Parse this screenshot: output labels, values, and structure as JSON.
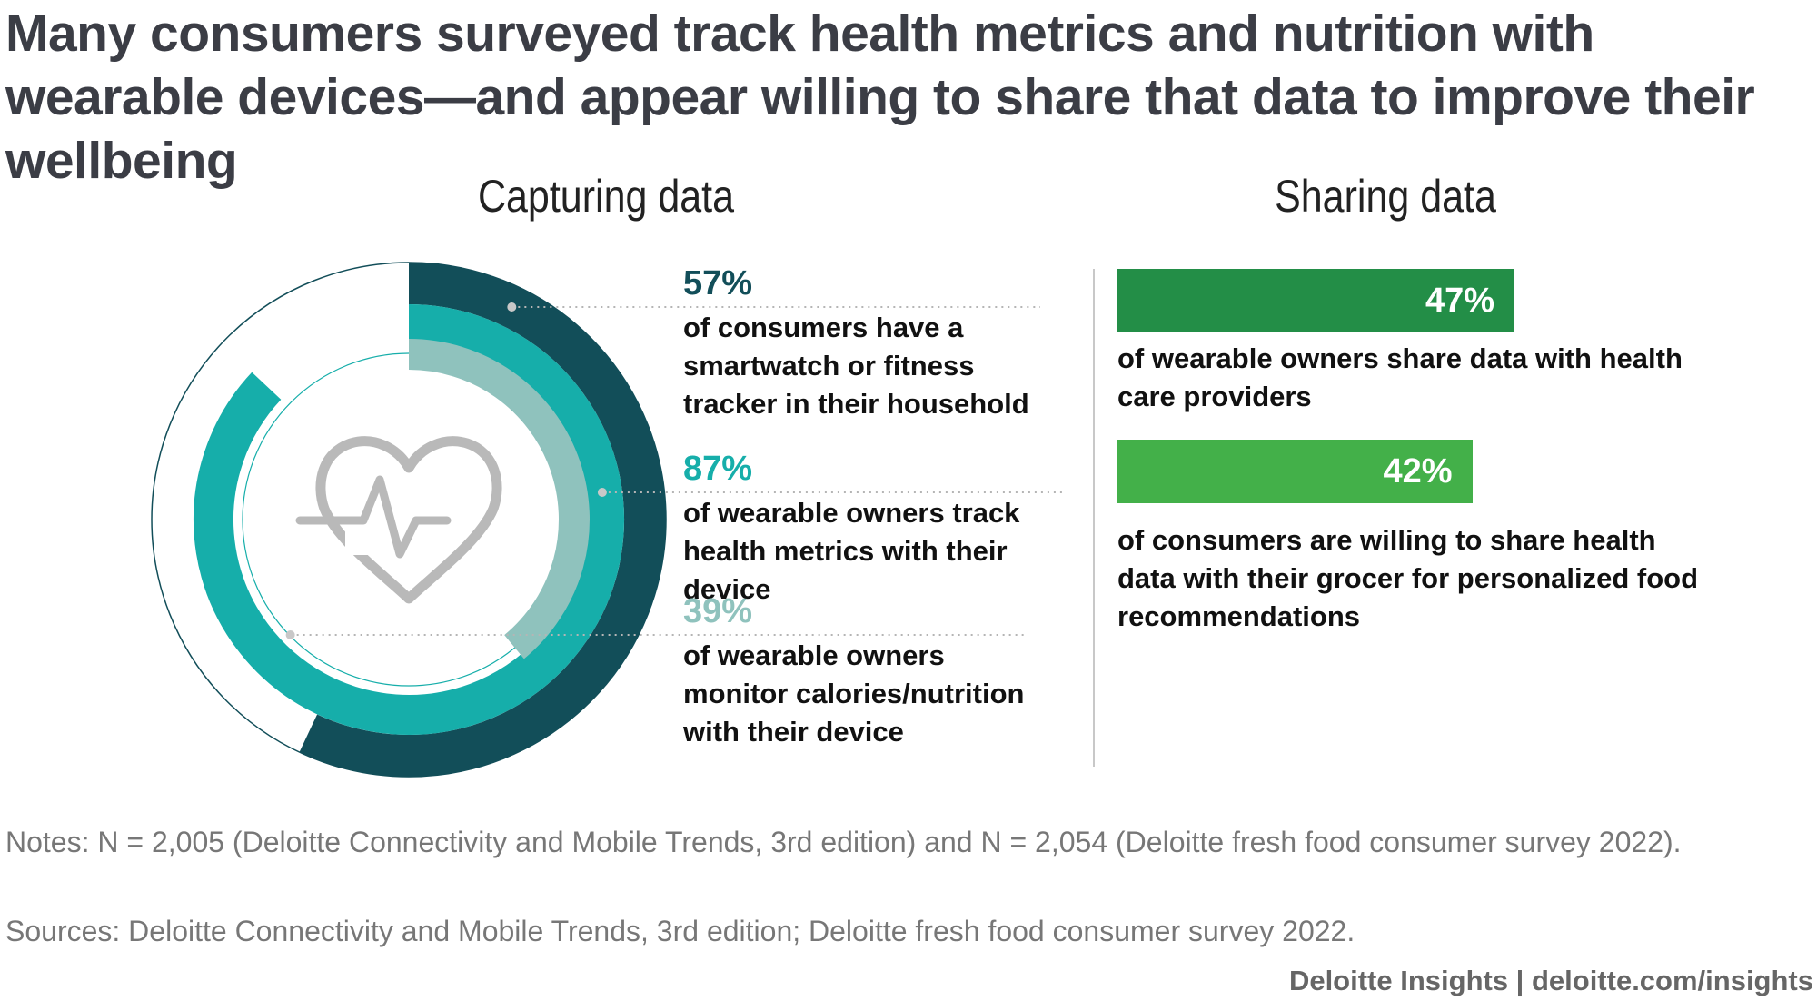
{
  "title": "Many consumers surveyed track health metrics and nutrition with wearable devices—and appear willing to share that data to improve their wellbeing",
  "chart_data": [
    {
      "type": "radial-bar",
      "title": "Capturing data",
      "max": 100,
      "colors": {
        "accent": "#124e59",
        "teal": "#16aeaa",
        "light_teal": "#8fc2bd",
        "track": "#ffffff",
        "icon": "#b9b9b9"
      },
      "series": [
        {
          "value_label": "57%",
          "value": 57,
          "description": "of consumers have a smartwatch or fitness tracker in their household",
          "color": "#124e59"
        },
        {
          "value_label": "87%",
          "value": 87,
          "description": "of wearable owners track health metrics with their device",
          "color": "#16aeaa"
        },
        {
          "value_label": "39%",
          "value": 39,
          "description": "of wearable owners monitor calories/nutrition with their device",
          "color": "#8fc2bd"
        }
      ],
      "icon": "heart-pulse-icon"
    },
    {
      "type": "bar",
      "title": "Sharing data",
      "max": 100,
      "series": [
        {
          "value_label": "47%",
          "value": 47,
          "description": "of wearable owners share data with health care providers",
          "color": "#238e47"
        },
        {
          "value_label": "42%",
          "value": 42,
          "description": "of consumers are willing to share health data with their grocer for personalized food recommendations",
          "color": "#43b049"
        }
      ]
    }
  ],
  "notes": "Notes: N = 2,005 (Deloitte Connectivity and Mobile Trends, 3rd edition) and N = 2,054 (Deloitte fresh food consumer survey 2022).",
  "sources": "Sources: Deloitte Connectivity and Mobile Trends, 3rd edition; Deloitte fresh food consumer survey 2022.",
  "footer": "Deloitte Insights | deloitte.com/insights"
}
